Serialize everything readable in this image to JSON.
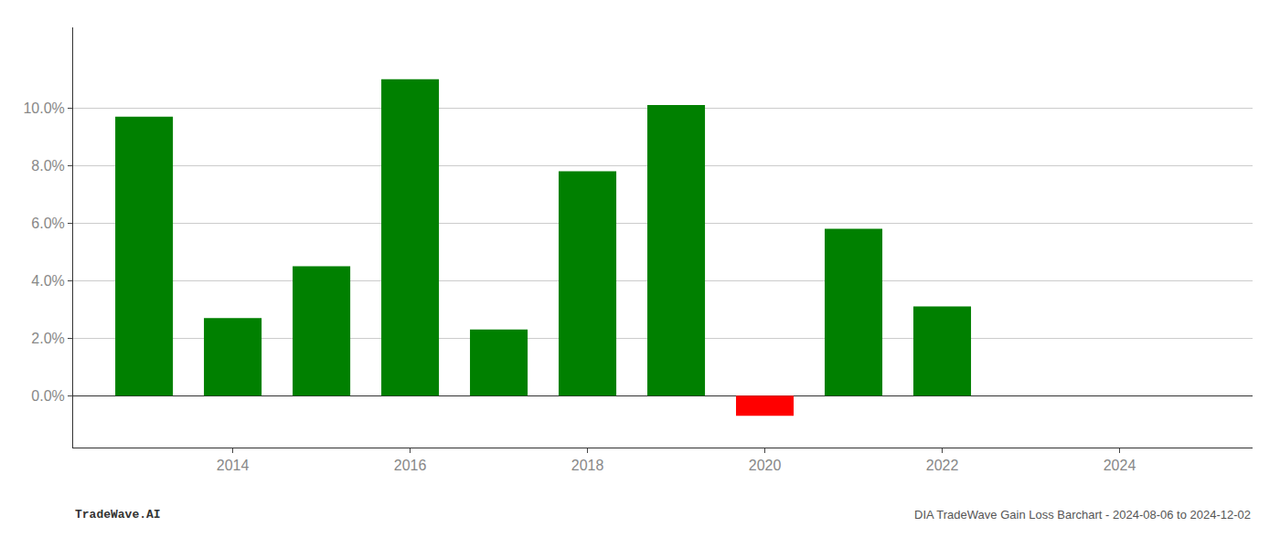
{
  "chart_data": {
    "type": "bar",
    "x": [
      2013,
      2014,
      2015,
      2016,
      2017,
      2018,
      2019,
      2020,
      2021,
      2022
    ],
    "values": [
      0.097,
      0.027,
      0.045,
      0.11,
      0.023,
      0.078,
      0.101,
      -0.007,
      0.058,
      0.031
    ],
    "colors": [
      "#008000",
      "#008000",
      "#008000",
      "#008000",
      "#008000",
      "#008000",
      "#008000",
      "#ff0000",
      "#008000",
      "#008000"
    ],
    "xlim": [
      2012.2,
      2025.5
    ],
    "xticks": [
      2014,
      2016,
      2018,
      2020,
      2022,
      2024
    ],
    "ylim": [
      -0.018,
      0.128
    ],
    "yticks": [
      {
        "value": 0.0,
        "label": "0.0%"
      },
      {
        "value": 0.02,
        "label": "2.0%"
      },
      {
        "value": 0.04,
        "label": "4.0%"
      },
      {
        "value": 0.06,
        "label": "6.0%"
      },
      {
        "value": 0.08,
        "label": "8.0%"
      },
      {
        "value": 0.1,
        "label": "10.0%"
      }
    ],
    "grid": "y",
    "annotations": [
      "TradeWave.AI",
      "DIA TradeWave Gain Loss Barchart - 2024-08-06 to 2024-12-02"
    ]
  }
}
